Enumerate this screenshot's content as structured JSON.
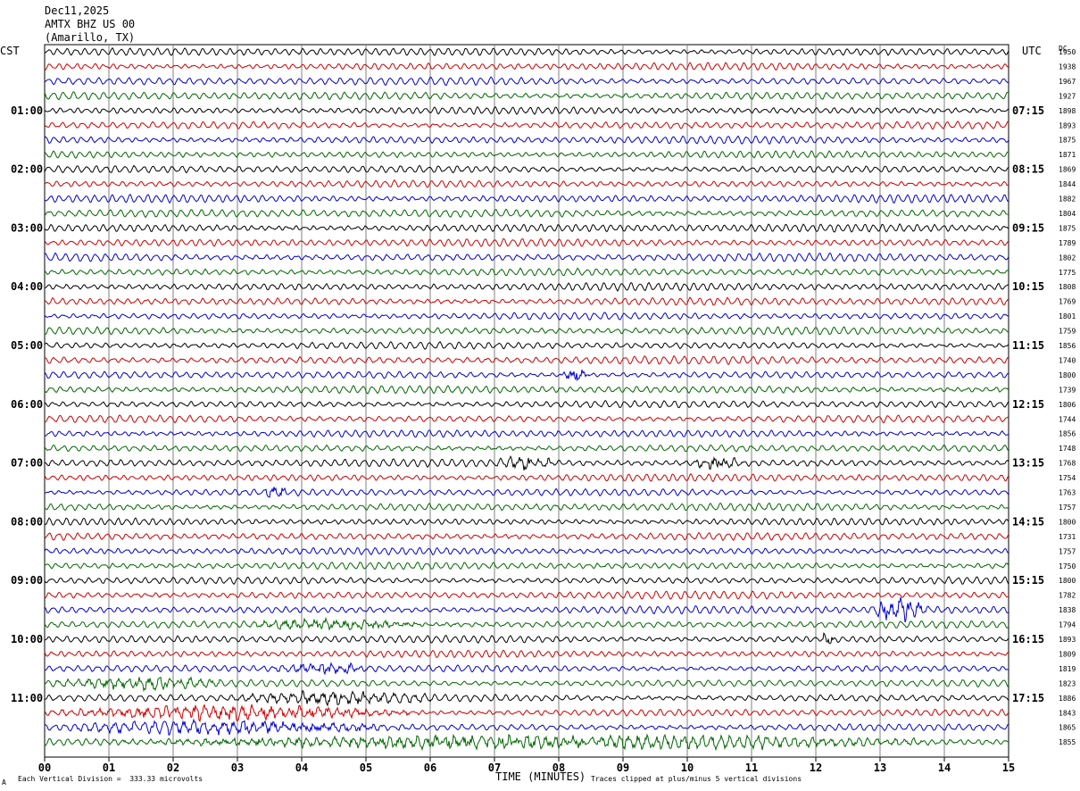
{
  "header": {
    "date": "Dec11,2025",
    "station": "AMTX BHZ US 00",
    "location": "(Amarillo, TX)"
  },
  "left_tz": "CST",
  "right_tz": "UTC",
  "right_col_header": "DC",
  "footer": {
    "left_note": "Each Vertical Division =  333.33 microvolts",
    "xlabel": "TIME (MINUTES)",
    "right_note": "Traces clipped at plus/minus 5 vertical divisions",
    "corner_mark": "A"
  },
  "colors": {
    "trace_cycle": [
      "#000000",
      "#cc0000",
      "#0000cc",
      "#006600"
    ],
    "grid": "#808080"
  },
  "chart_data": {
    "type": "line",
    "title": "",
    "xlabel": "TIME (MINUTES)",
    "xlim": [
      0,
      15
    ],
    "x_ticks": [
      "00",
      "01",
      "02",
      "03",
      "04",
      "05",
      "06",
      "07",
      "08",
      "09",
      "10",
      "11",
      "12",
      "13",
      "14",
      "15"
    ],
    "minutes_per_trace": 15,
    "trace_count": 48,
    "left_time_labels": [
      "01:00",
      "02:00",
      "03:00",
      "04:00",
      "05:00",
      "06:00",
      "07:00",
      "08:00",
      "09:00",
      "10:00",
      "11:00"
    ],
    "right_time_labels": [
      "07:15",
      "08:15",
      "09:15",
      "10:15",
      "11:15",
      "12:15",
      "13:15",
      "14:15",
      "15:15",
      "16:15",
      "17:15"
    ],
    "dc_offsets": [
      1950,
      1938,
      1967,
      1927,
      1898,
      1893,
      1875,
      1871,
      1869,
      1844,
      1882,
      1804,
      1875,
      1789,
      1802,
      1775,
      1808,
      1769,
      1801,
      1759,
      1856,
      1740,
      1800,
      1739,
      1806,
      1744,
      1856,
      1748,
      1768,
      1754,
      1763,
      1757,
      1800,
      1731,
      1757,
      1750,
      1800,
      1782,
      1838,
      1794,
      1893,
      1809,
      1819,
      1823,
      1886,
      1843,
      1865,
      1855
    ],
    "vertical_division_microvolts": 333.33,
    "clip_divisions": 5,
    "events": [
      {
        "trace": 22,
        "minute_start": 8.0,
        "minute_end": 8.5,
        "amplitude": 1.8
      },
      {
        "trace": 28,
        "minute_start": 7.0,
        "minute_end": 8.0,
        "amplitude": 1.6
      },
      {
        "trace": 28,
        "minute_start": 10.0,
        "minute_end": 11.0,
        "amplitude": 1.6
      },
      {
        "trace": 30,
        "minute_start": 3.4,
        "minute_end": 3.8,
        "amplitude": 1.5
      },
      {
        "trace": 38,
        "minute_start": 12.8,
        "minute_end": 13.8,
        "amplitude": 3.0
      },
      {
        "trace": 39,
        "minute_start": 3.0,
        "minute_end": 6.0,
        "amplitude": 1.4
      },
      {
        "trace": 40,
        "minute_start": 12.0,
        "minute_end": 12.4,
        "amplitude": 1.4
      },
      {
        "trace": 42,
        "minute_start": 3.5,
        "minute_end": 5.2,
        "amplitude": 1.4
      },
      {
        "trace": 43,
        "minute_start": 0.0,
        "minute_end": 3.0,
        "amplitude": 1.6
      },
      {
        "trace": 44,
        "minute_start": 2.8,
        "minute_end": 6.2,
        "amplitude": 1.6
      },
      {
        "trace": 45,
        "minute_start": 0.0,
        "minute_end": 6.0,
        "amplitude": 1.8
      },
      {
        "trace": 46,
        "minute_start": 0.0,
        "minute_end": 6.0,
        "amplitude": 1.6
      },
      {
        "trace": 47,
        "minute_start": 0.0,
        "minute_end": 15.0,
        "amplitude": 1.6
      }
    ]
  }
}
